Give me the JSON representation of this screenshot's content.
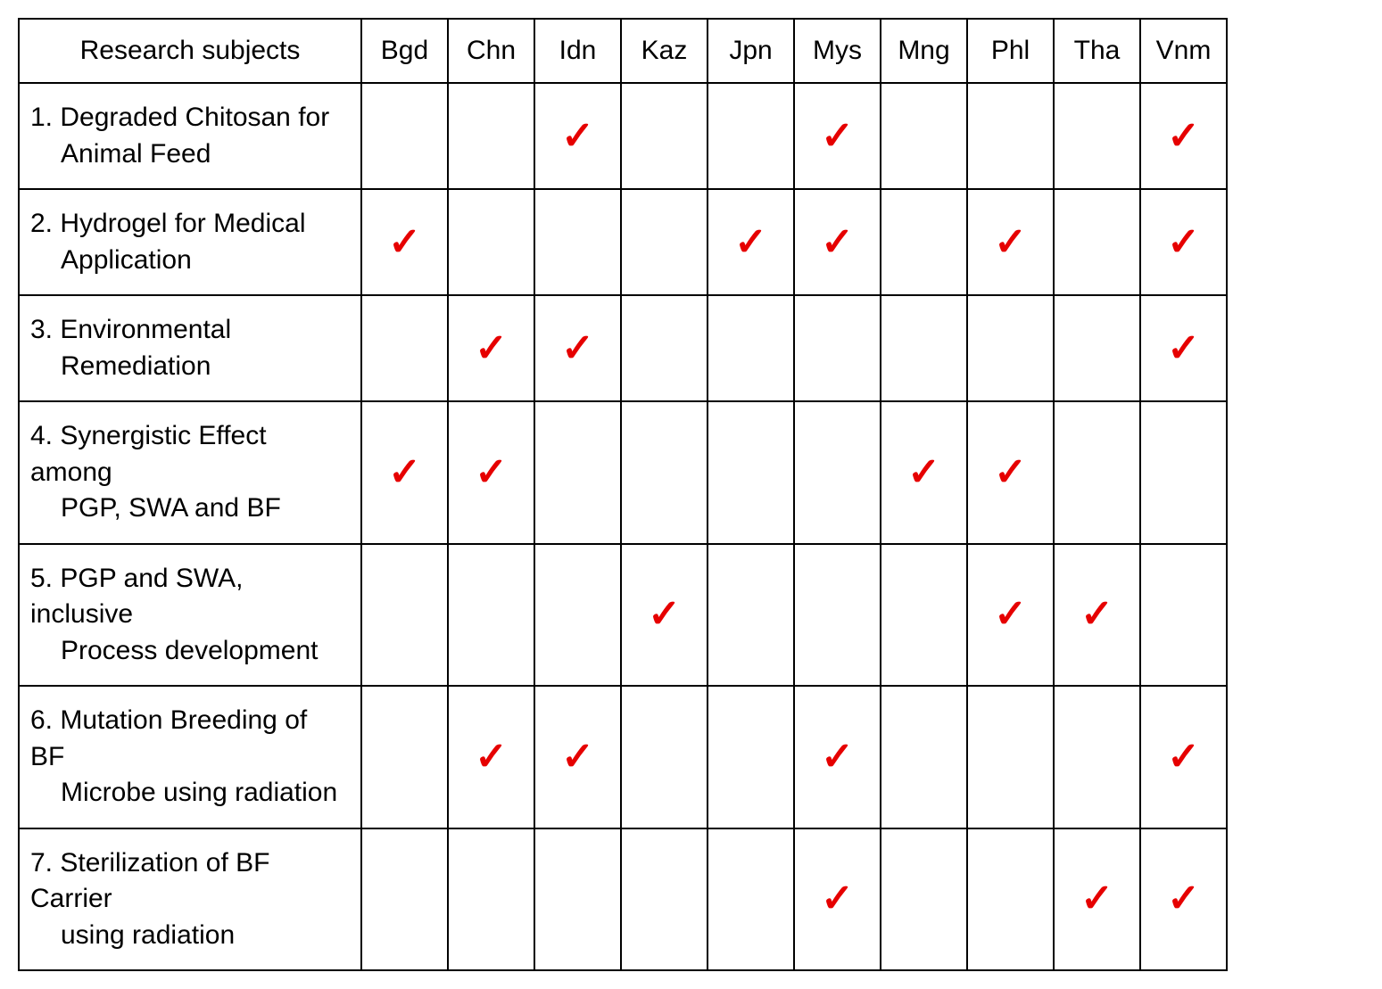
{
  "table": {
    "headers": {
      "subjects": "Research subjects",
      "countries": [
        "Bgd",
        "Chn",
        "Idn",
        "Kaz",
        "Jpn",
        "Mys",
        "Mng",
        "Phl",
        "Tha",
        "Vnm"
      ]
    },
    "check_glyph": "✓",
    "check_color": "#e60000",
    "border_color": "#000000",
    "background_color": "#ffffff",
    "font_family": "Arial",
    "header_fontsize": 30,
    "cell_fontsize": 30,
    "check_fontsize": 44,
    "rows": [
      {
        "num": "1.",
        "line1": "Degraded Chitosan for",
        "line2": "Animal Feed",
        "checks": [
          false,
          false,
          true,
          false,
          false,
          true,
          false,
          false,
          false,
          true
        ]
      },
      {
        "num": "2.",
        "line1": "Hydrogel for Medical",
        "line2": "Application",
        "checks": [
          true,
          false,
          false,
          false,
          true,
          true,
          false,
          true,
          false,
          true
        ]
      },
      {
        "num": "3.",
        "line1": "Environmental",
        "line2": "Remediation",
        "checks": [
          false,
          true,
          true,
          false,
          false,
          false,
          false,
          false,
          false,
          true
        ]
      },
      {
        "num": "4.",
        "line1": "Synergistic Effect among",
        "line2": "PGP, SWA and BF",
        "checks": [
          true,
          true,
          false,
          false,
          false,
          false,
          true,
          true,
          false,
          false
        ]
      },
      {
        "num": "5.",
        "line1": "PGP and SWA, inclusive",
        "line2": "Process development",
        "checks": [
          false,
          false,
          false,
          true,
          false,
          false,
          false,
          true,
          true,
          false
        ]
      },
      {
        "num": "6.",
        "line1": "Mutation Breeding of BF",
        "line2": "Microbe using radiation",
        "checks": [
          false,
          true,
          true,
          false,
          false,
          true,
          false,
          false,
          false,
          true
        ]
      },
      {
        "num": "7.",
        "line1": "Sterilization of BF Carrier",
        "line2": "using radiation",
        "checks": [
          false,
          false,
          false,
          false,
          false,
          true,
          false,
          false,
          true,
          true
        ]
      }
    ]
  }
}
